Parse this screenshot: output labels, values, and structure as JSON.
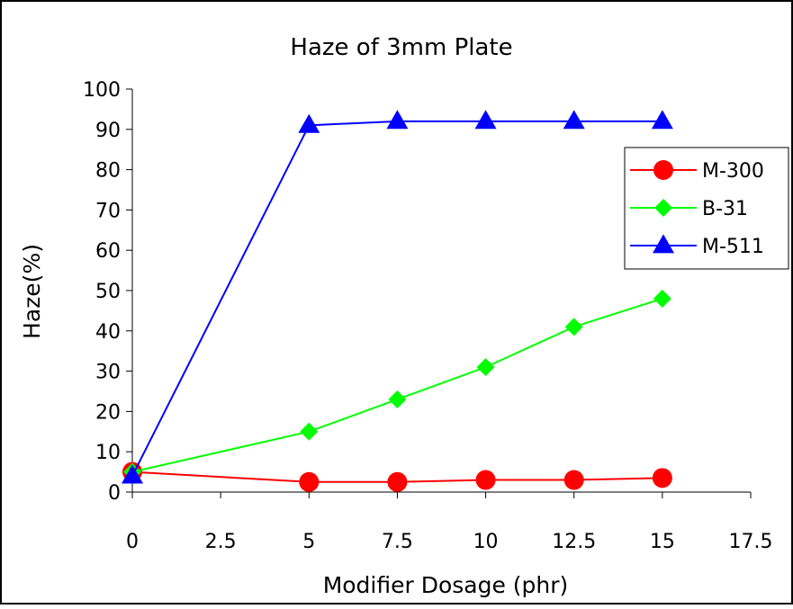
{
  "chart_data": {
    "type": "line",
    "title": "Haze of 3mm Plate",
    "xlabel": "Modifier Dosage (phr)",
    "ylabel": "Haze(%)",
    "xlim": [
      0,
      17.5
    ],
    "ylim": [
      0,
      100
    ],
    "x_ticks": [
      0,
      2.5,
      5,
      7.5,
      10,
      12.5,
      15,
      17.5
    ],
    "x_tick_labels": [
      "0",
      "2.5",
      "5",
      "7.5",
      "10",
      "12.5",
      "15",
      "17.5"
    ],
    "y_ticks": [
      0,
      10,
      20,
      30,
      40,
      50,
      60,
      70,
      80,
      90,
      100
    ],
    "y_tick_labels": [
      "0",
      "10",
      "20",
      "30",
      "40",
      "50",
      "60",
      "70",
      "80",
      "90",
      "100"
    ],
    "grid": false,
    "legend_position": "right",
    "series": [
      {
        "name": "M-300",
        "color": "#ff0000",
        "marker": "circle",
        "x": [
          0,
          5,
          7.5,
          10,
          12.5,
          15
        ],
        "values": [
          5,
          2.5,
          2.5,
          3,
          3,
          3.5
        ]
      },
      {
        "name": "B-31",
        "color": "#00ff00",
        "marker": "diamond",
        "x": [
          0,
          5,
          7.5,
          10,
          12.5,
          15
        ],
        "values": [
          5,
          15,
          23,
          31,
          41,
          48
        ]
      },
      {
        "name": "M-511",
        "color": "#0000ff",
        "marker": "triangle",
        "x": [
          0,
          5,
          7.5,
          10,
          12.5,
          15
        ],
        "values": [
          4,
          91,
          92,
          92,
          92,
          92
        ]
      }
    ]
  }
}
